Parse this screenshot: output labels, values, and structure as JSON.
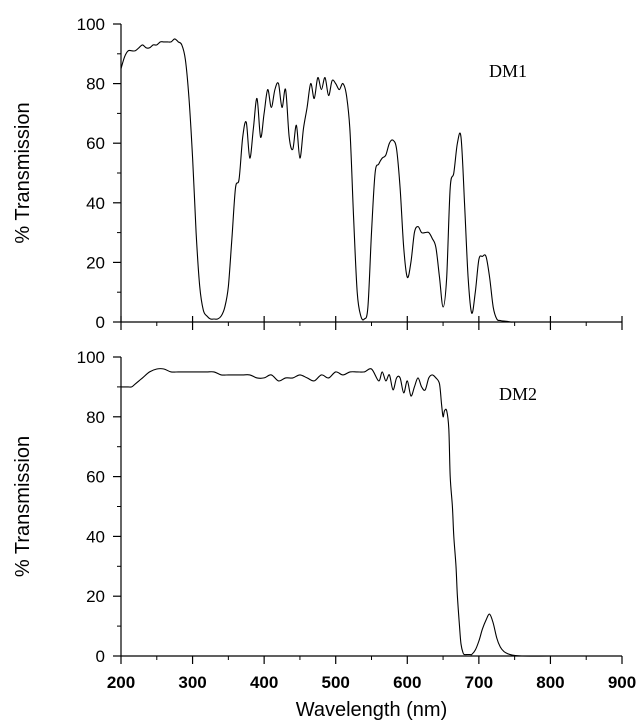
{
  "chart_data": [
    {
      "type": "line",
      "xlabel": "",
      "ylabel": "% Transmission",
      "xlim": [
        200,
        900
      ],
      "ylim": [
        0,
        100
      ],
      "yticks": [
        0,
        20,
        40,
        60,
        80,
        100
      ],
      "xticks": [
        200,
        300,
        400,
        500,
        600,
        700,
        800,
        900
      ],
      "grid": false,
      "series": [
        {
          "name": "DM1",
          "x": [
            200,
            205,
            210,
            215,
            220,
            225,
            230,
            235,
            240,
            245,
            250,
            255,
            260,
            265,
            270,
            275,
            280,
            285,
            290,
            295,
            300,
            305,
            310,
            315,
            320,
            325,
            330,
            335,
            340,
            345,
            350,
            355,
            360,
            365,
            370,
            375,
            380,
            385,
            390,
            395,
            400,
            405,
            410,
            415,
            420,
            425,
            430,
            435,
            440,
            445,
            450,
            455,
            460,
            465,
            470,
            475,
            480,
            485,
            490,
            495,
            500,
            505,
            510,
            515,
            520,
            525,
            530,
            535,
            540,
            545,
            550,
            555,
            560,
            565,
            570,
            575,
            580,
            585,
            590,
            595,
            600,
            605,
            610,
            615,
            620,
            625,
            630,
            635,
            640,
            645,
            650,
            655,
            660,
            665,
            670,
            675,
            680,
            685,
            690,
            695,
            700,
            705,
            710,
            715,
            720,
            725,
            730,
            735,
            740,
            745,
            750,
            800,
            850,
            900
          ],
          "values": [
            85,
            89,
            91,
            91,
            91,
            92,
            93,
            92,
            92,
            93,
            93,
            94,
            94,
            94,
            94,
            95,
            94,
            93,
            88,
            75,
            55,
            30,
            12,
            4,
            2,
            1,
            1,
            1,
            2,
            5,
            12,
            28,
            45,
            48,
            62,
            67,
            55,
            65,
            75,
            62,
            70,
            78,
            72,
            78,
            80,
            72,
            78,
            62,
            58,
            66,
            55,
            65,
            72,
            80,
            75,
            82,
            78,
            82,
            76,
            81,
            80,
            78,
            80,
            76,
            64,
            35,
            10,
            2,
            1,
            5,
            30,
            50,
            53,
            55,
            56,
            60,
            61,
            58,
            45,
            25,
            15,
            20,
            30,
            32,
            30,
            30,
            30,
            28,
            25,
            15,
            5,
            15,
            45,
            50,
            60,
            62,
            40,
            15,
            3,
            10,
            21,
            22,
            22,
            15,
            5,
            1,
            0.5,
            0.3,
            0.2,
            0,
            0,
            0,
            0,
            0
          ]
        }
      ]
    },
    {
      "type": "line",
      "xlabel": "Wavelength (nm)",
      "ylabel": "% Transmission",
      "xlim": [
        200,
        900
      ],
      "ylim": [
        0,
        100
      ],
      "yticks": [
        0,
        20,
        40,
        60,
        80,
        100
      ],
      "xticks": [
        200,
        300,
        400,
        500,
        600,
        700,
        800,
        900
      ],
      "grid": false,
      "series": [
        {
          "name": "DM2",
          "x": [
            200,
            205,
            210,
            215,
            220,
            225,
            230,
            240,
            250,
            260,
            270,
            280,
            290,
            300,
            310,
            320,
            330,
            340,
            350,
            360,
            370,
            380,
            390,
            400,
            410,
            420,
            430,
            440,
            450,
            460,
            470,
            480,
            490,
            500,
            510,
            520,
            530,
            540,
            550,
            560,
            565,
            570,
            575,
            580,
            585,
            590,
            595,
            600,
            605,
            610,
            615,
            620,
            625,
            630,
            635,
            640,
            645,
            648,
            650,
            652,
            655,
            658,
            660,
            663,
            665,
            668,
            670,
            673,
            675,
            678,
            680,
            683,
            685,
            688,
            690,
            695,
            700,
            705,
            710,
            715,
            720,
            725,
            730,
            735,
            740,
            745,
            750,
            760,
            800,
            850,
            900
          ],
          "values": [
            90,
            90,
            90,
            90,
            91,
            92,
            93,
            95,
            96,
            96,
            95,
            95,
            95,
            95,
            95,
            95,
            95,
            94,
            94,
            94,
            94,
            94,
            93,
            93,
            94,
            92,
            93,
            93,
            94,
            93,
            92,
            94,
            93,
            95,
            94,
            95,
            95,
            95,
            96,
            92,
            95,
            92,
            94,
            89,
            93,
            93,
            88,
            92,
            87,
            90,
            93,
            90,
            89,
            93,
            94,
            93,
            91,
            84,
            80,
            82,
            82,
            76,
            60,
            50,
            40,
            30,
            20,
            10,
            4,
            1,
            0.5,
            0.5,
            0.5,
            0.5,
            0.5,
            2,
            5,
            9,
            12,
            14,
            11,
            6,
            3,
            1.5,
            0.8,
            0.4,
            0.2,
            0,
            0,
            0,
            0
          ]
        }
      ]
    }
  ]
}
